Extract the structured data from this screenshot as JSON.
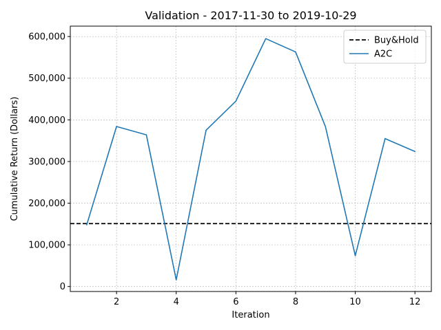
{
  "chart_data": {
    "type": "line",
    "title": "Validation - 2017-11-30 to 2019-10-29",
    "xlabel": "Iteration",
    "ylabel": "Cumulative Return (Dollars)",
    "xlim": [
      0.45,
      12.55
    ],
    "ylim": [
      -12000,
      625000
    ],
    "x_ticks": [
      2,
      4,
      6,
      8,
      10,
      12
    ],
    "x_tick_labels": [
      "2",
      "4",
      "6",
      "8",
      "10",
      "12"
    ],
    "y_ticks": [
      0,
      100000,
      200000,
      300000,
      400000,
      500000,
      600000
    ],
    "y_tick_labels": [
      "0",
      "100,000",
      "200,000",
      "300,000",
      "400,000",
      "500,000",
      "600,000"
    ],
    "grid": true,
    "legend_position": "top-right",
    "series": [
      {
        "name": "Buy&Hold",
        "style": "dashed",
        "color": "#000000",
        "x": [
          0.45,
          12.55
        ],
        "values": [
          151000,
          151000
        ]
      },
      {
        "name": "A2C",
        "style": "solid",
        "color": "#1f77b4",
        "x": [
          1,
          2,
          3,
          4,
          5,
          6,
          7,
          8,
          9,
          10,
          11,
          12
        ],
        "values": [
          148000,
          384000,
          364000,
          16000,
          375000,
          445000,
          595000,
          563000,
          384000,
          74000,
          355000,
          324000
        ]
      }
    ]
  }
}
